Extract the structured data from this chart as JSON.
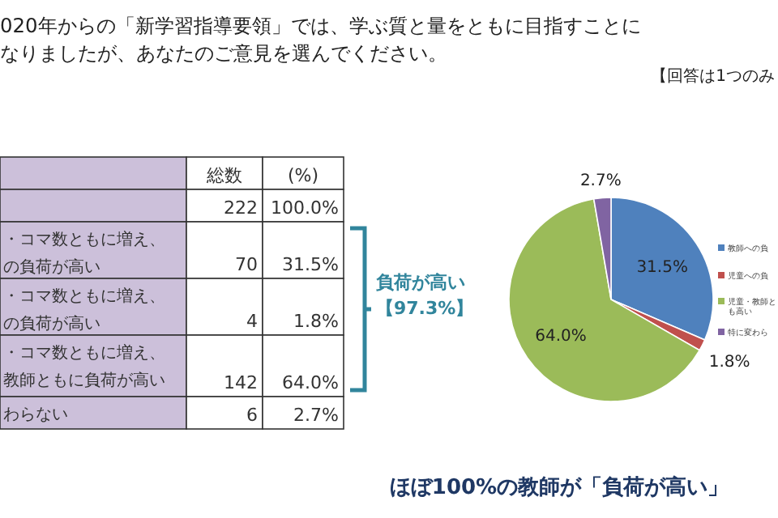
{
  "chart_data": {
    "type": "pie",
    "title": "020年からの「新学習指導要領」では、学ぶ質と量をともに目指すことになりましたが、あなたのご意見を選んでください。",
    "categories": [
      "教師への負",
      "児童への負",
      "児童・教師とも高い",
      "特に変わら"
    ],
    "values": [
      31.5,
      1.8,
      64.0,
      2.7
    ],
    "colors": [
      "#4f81bd",
      "#c0504d",
      "#9bbb59",
      "#8064a2"
    ],
    "value_labels": [
      "31.5%",
      "1.8%",
      "64.0%",
      "2.7%"
    ],
    "legend": "right",
    "annotations": [
      "【回答は1つのみ",
      "負荷が高い",
      "【97.3%】",
      "ほぼ100%の教師が「負荷が高い」",
      "総数",
      "(%)",
      "222",
      "100.0%",
      "・コマ数ともに増え、の負荷が高い",
      "70",
      "31.5%",
      "・コマ数ともに増え、の負荷が高い",
      "4",
      "1.8%",
      "・コマ数ともに増え、教師ともに負荷が高い",
      "142",
      "64.0%",
      "わらない",
      "6",
      "2.7%"
    ]
  }
}
